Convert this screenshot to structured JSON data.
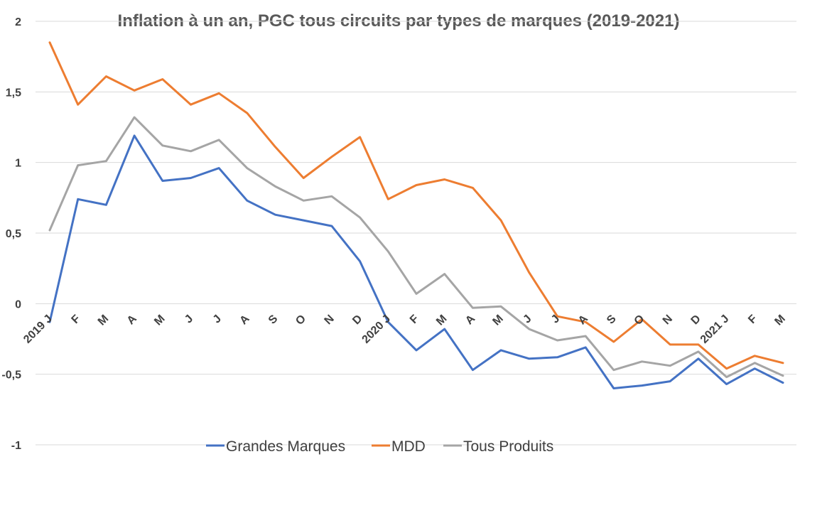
{
  "chart_data": {
    "type": "line",
    "title": "Inflation à un an, PGC tous circuits par types de marques (2019-2021)",
    "xlabel": "",
    "ylabel": "",
    "ylim": [
      -1,
      2
    ],
    "yticks": [
      2,
      1.5,
      1,
      0.5,
      0,
      -0.5,
      -1
    ],
    "ytick_labels": [
      "2",
      "1,5",
      "1",
      "0,5",
      "0",
      "-0,5",
      "-1"
    ],
    "categories": [
      "2019 J",
      "F",
      "M",
      "A",
      "M",
      "J",
      "J",
      "A",
      "S",
      "O",
      "N",
      "D",
      "2020 J",
      "F",
      "M",
      "A",
      "M",
      "J",
      "J",
      "A",
      "S",
      "O",
      "N",
      "D",
      "2021 J",
      "F",
      "M"
    ],
    "grid": true,
    "legend_position": "bottom",
    "series": [
      {
        "name": "Grandes Marques",
        "color": "#4472c4",
        "values": [
          -0.13,
          0.74,
          0.7,
          1.19,
          0.87,
          0.89,
          0.96,
          0.73,
          0.63,
          0.59,
          0.55,
          0.3,
          -0.13,
          -0.33,
          -0.18,
          -0.47,
          -0.33,
          -0.39,
          -0.38,
          -0.31,
          -0.6,
          -0.58,
          -0.55,
          -0.39,
          -0.57,
          -0.46,
          -0.56
        ]
      },
      {
        "name": "MDD",
        "color": "#ed7d31",
        "values": [
          1.85,
          1.41,
          1.61,
          1.51,
          1.59,
          1.41,
          1.49,
          1.35,
          1.11,
          0.89,
          1.04,
          1.18,
          0.74,
          0.84,
          0.88,
          0.82,
          0.59,
          0.22,
          -0.09,
          -0.13,
          -0.27,
          -0.11,
          -0.29,
          -0.29,
          -0.46,
          -0.37,
          -0.42
        ]
      },
      {
        "name": "Tous Produits",
        "color": "#a5a5a5",
        "values": [
          0.52,
          0.98,
          1.01,
          1.32,
          1.12,
          1.08,
          1.16,
          0.96,
          0.83,
          0.73,
          0.76,
          0.61,
          0.37,
          0.07,
          0.21,
          -0.03,
          -0.02,
          -0.18,
          -0.26,
          -0.23,
          -0.47,
          -0.41,
          -0.44,
          -0.34,
          -0.52,
          -0.42,
          -0.51
        ]
      }
    ]
  }
}
